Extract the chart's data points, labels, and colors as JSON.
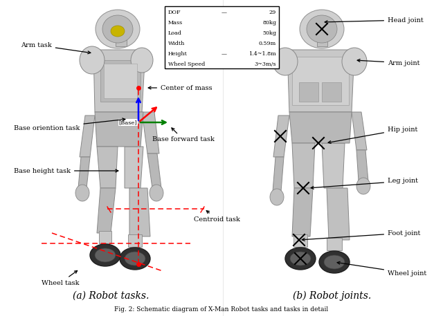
{
  "fig_width": 6.4,
  "fig_height": 4.57,
  "bg": "#ffffff",
  "caption_a": "(a) Robot tasks.",
  "caption_b": "(b) Robot joints.",
  "fig_caption": "Fig. 2: Schematic diagram of X-Man Robot tasks and tasks in detail",
  "table_rows": [
    [
      "DOF",
      "—",
      "29"
    ],
    [
      "Mass",
      "",
      "80kg"
    ],
    [
      "Load",
      "",
      "50kg"
    ],
    [
      "Width",
      "",
      "0.59m"
    ],
    [
      "Height",
      "—",
      "1.4~1.8m"
    ],
    [
      "Wheel Speed",
      "",
      "3~3m/s"
    ]
  ],
  "robot_color": "#c0c0c0",
  "robot_dark": "#888888",
  "robot_shadow": "#a0a0a0"
}
